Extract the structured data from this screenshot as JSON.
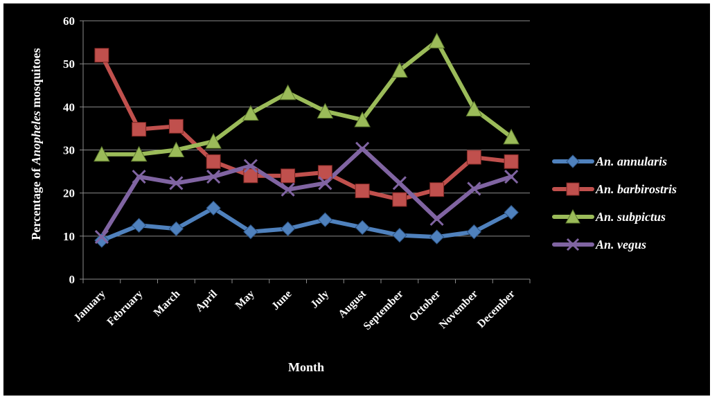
{
  "chart_data": {
    "type": "line",
    "xlabel": "Month",
    "ylabel": {
      "prefix": "Percentage of ",
      "italic": "Anopheles",
      "suffix": " mosquitoes"
    },
    "ylim": [
      0,
      60
    ],
    "yticks": [
      "0",
      "10",
      "20",
      "30",
      "40",
      "50",
      "60"
    ],
    "grid": true,
    "legend_position": "right",
    "categories": [
      "January",
      "February",
      "March",
      "April",
      "May",
      "June",
      "July",
      "August",
      "September",
      "October",
      "November",
      "December"
    ],
    "series": [
      {
        "name": "An. annularis",
        "color": "#4f81bd",
        "marker": "diamond",
        "values": [
          9,
          12.5,
          11.7,
          16.5,
          11,
          11.7,
          13.8,
          12,
          10.2,
          9.8,
          11,
          15.5
        ]
      },
      {
        "name": "An. barbirostris",
        "color": "#c0504d",
        "marker": "square",
        "values": [
          52,
          34.8,
          35.5,
          27.3,
          24,
          24,
          24.8,
          20.5,
          18.5,
          20.8,
          28.3,
          27.3
        ]
      },
      {
        "name": "An. subpictus",
        "color": "#9bbb59",
        "marker": "triangle",
        "values": [
          29,
          29,
          30,
          32,
          38.5,
          43.3,
          39,
          37,
          48.5,
          55.3,
          39.5,
          33
        ]
      },
      {
        "name": "An. vegus",
        "color": "#8064a2",
        "marker": "x",
        "values": [
          9.8,
          23.8,
          22.3,
          23.8,
          26.3,
          20.8,
          22.3,
          30.3,
          22.3,
          14,
          21,
          23.8
        ]
      }
    ]
  }
}
